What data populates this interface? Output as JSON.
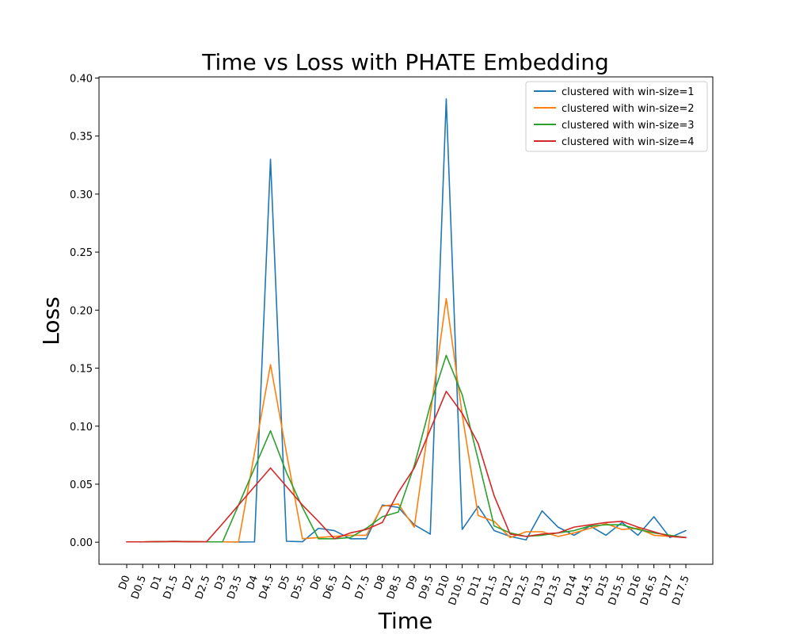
{
  "chart_data": {
    "type": "line",
    "title": "Time vs Loss with PHATE Embedding",
    "xlabel": "Time",
    "ylabel": "Loss",
    "categories": [
      "D0",
      "D0.5",
      "D1",
      "D1.5",
      "D2",
      "D2.5",
      "D3",
      "D3.5",
      "D4",
      "D4.5",
      "D5",
      "D5.5",
      "D6",
      "D6.5",
      "D7",
      "D7.5",
      "D8",
      "D8.5",
      "D9",
      "D9.5",
      "D10",
      "D10.5",
      "D11",
      "D11.5",
      "D12",
      "D12.5",
      "D13",
      "D13.5",
      "D14",
      "D14.5",
      "D15",
      "D15.5",
      "D16",
      "D16.5",
      "D17",
      "D17.5"
    ],
    "ylim": [
      -0.019,
      0.401
    ],
    "yticks": [
      0.0,
      0.05,
      0.1,
      0.15,
      0.2,
      0.25,
      0.3,
      0.35,
      0.4
    ],
    "ytick_labels": [
      "0.00",
      "0.05",
      "0.10",
      "0.15",
      "0.20",
      "0.25",
      "0.30",
      "0.35",
      "0.40"
    ],
    "grid": false,
    "legend_position": "top-right",
    "series": [
      {
        "name": "clustered with win-size=1",
        "color": "#1f77b4",
        "values": [
          0.0003,
          0.0003,
          0.0004,
          0.0008,
          0.0004,
          0.0003,
          0.0003,
          0.0002,
          0.0003,
          0.33,
          0.0008,
          0.0004,
          0.012,
          0.01,
          0.003,
          0.003,
          0.032,
          0.03,
          0.015,
          0.007,
          0.382,
          0.011,
          0.031,
          0.01,
          0.005,
          0.002,
          0.027,
          0.013,
          0.006,
          0.014,
          0.006,
          0.017,
          0.006,
          0.022,
          0.004,
          0.01
        ]
      },
      {
        "name": "clustered with win-size=2",
        "color": "#ff7f0e",
        "values": [
          0.0003,
          0.0003,
          0.0005,
          0.0007,
          0.0004,
          0.0003,
          0.0003,
          0.0003,
          0.077,
          0.153,
          0.077,
          0.003,
          0.004,
          0.005,
          0.006,
          0.006,
          0.031,
          0.033,
          0.013,
          0.11,
          0.21,
          0.11,
          0.023,
          0.018,
          0.004,
          0.009,
          0.009,
          0.005,
          0.008,
          0.012,
          0.016,
          0.011,
          0.012,
          0.006,
          0.005,
          0.004
        ]
      },
      {
        "name": "clustered with win-size=3",
        "color": "#2ca02c",
        "values": [
          0.0003,
          0.0003,
          0.0005,
          0.0006,
          0.0004,
          0.0003,
          0.0003,
          0.032,
          0.064,
          0.096,
          0.06,
          0.03,
          0.003,
          0.003,
          0.004,
          0.012,
          0.022,
          0.026,
          0.066,
          0.118,
          0.161,
          0.127,
          0.071,
          0.014,
          0.008,
          0.005,
          0.006,
          0.008,
          0.01,
          0.014,
          0.015,
          0.015,
          0.011,
          0.008,
          0.006,
          0.004
        ]
      },
      {
        "name": "clustered with win-size=4",
        "color": "#d62728",
        "values": [
          0.0003,
          0.0003,
          0.0005,
          0.0006,
          0.0004,
          0.0004,
          0.016,
          0.032,
          0.048,
          0.064,
          0.048,
          0.032,
          0.018,
          0.003,
          0.008,
          0.011,
          0.017,
          0.043,
          0.064,
          0.097,
          0.13,
          0.111,
          0.085,
          0.04,
          0.007,
          0.005,
          0.007,
          0.008,
          0.013,
          0.015,
          0.017,
          0.018,
          0.013,
          0.009,
          0.005,
          0.004
        ]
      }
    ]
  }
}
